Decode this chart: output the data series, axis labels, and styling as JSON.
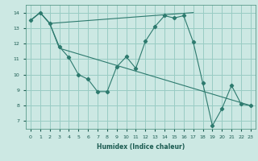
{
  "xlabel": "Humidex (Indice chaleur)",
  "bg_color": "#cce8e3",
  "grid_color": "#99ccc4",
  "line_color": "#2d7a6e",
  "xlim": [
    -0.5,
    23.5
  ],
  "ylim": [
    6.5,
    14.5
  ],
  "xticks": [
    0,
    1,
    2,
    3,
    4,
    5,
    6,
    7,
    8,
    9,
    10,
    11,
    12,
    13,
    14,
    15,
    16,
    17,
    18,
    19,
    20,
    21,
    22,
    23
  ],
  "yticks": [
    7,
    8,
    9,
    10,
    11,
    12,
    13,
    14
  ],
  "line1_x": [
    0,
    1,
    2,
    3,
    4,
    5,
    6,
    7,
    8,
    9,
    10,
    11,
    12,
    13,
    14,
    15,
    16,
    17,
    18,
    19,
    20,
    21,
    22,
    23
  ],
  "line1_y": [
    13.5,
    14.0,
    13.3,
    11.8,
    11.1,
    10.0,
    9.7,
    8.9,
    8.9,
    10.5,
    11.15,
    10.4,
    12.15,
    13.1,
    13.8,
    13.65,
    13.8,
    12.1,
    9.45,
    6.7,
    7.8,
    9.3,
    8.1,
    8.0
  ],
  "line2_x": [
    0,
    1,
    2,
    3,
    23
  ],
  "line2_y": [
    13.5,
    14.0,
    13.3,
    11.7,
    8.0
  ],
  "line3_x": [
    0,
    1,
    2,
    17
  ],
  "line3_y": [
    13.5,
    14.0,
    13.3,
    14.0
  ]
}
